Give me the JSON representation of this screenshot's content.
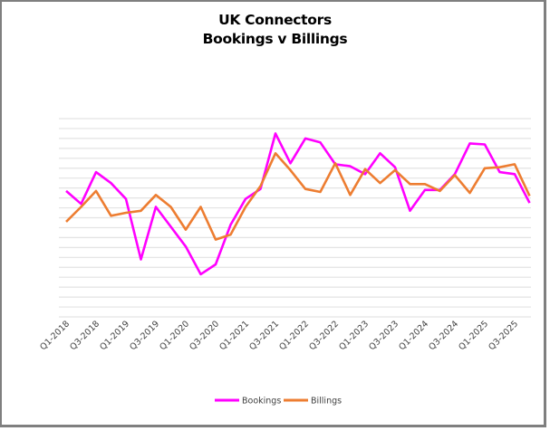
{
  "chart_data": {
    "type": "line",
    "title": "UK Connectors",
    "subtitle": "Bookings v Billings",
    "xlabel": "",
    "ylabel": "",
    "y_axis_labels_shown": false,
    "grid": true,
    "gridline_count": 21,
    "ylim": [
      0,
      20
    ],
    "legend_position": "bottom",
    "categories": [
      "Q1-2018",
      "Q2-2018",
      "Q3-2018",
      "Q4-2018",
      "Q1-2019",
      "Q2-2019",
      "Q3-2019",
      "Q4-2019",
      "Q1-2020",
      "Q2-2020",
      "Q3-2020",
      "Q4-2020",
      "Q1-2021",
      "Q2-2021",
      "Q3-2021",
      "Q4-2021",
      "Q1-2022",
      "Q2-2022",
      "Q3-2022",
      "Q4-2022",
      "Q1-2023",
      "Q2-2023",
      "Q3-2023",
      "Q4-2023",
      "Q1-2024",
      "Q2-2024",
      "Q3-2024",
      "Q4-2024",
      "Q1-2025",
      "Q2-2025",
      "Q3-2025",
      "Q4-2025"
    ],
    "tick_labels": [
      "Q1-2018",
      "Q3-2018",
      "Q1-2019",
      "Q3-2019",
      "Q1-2020",
      "Q3-2020",
      "Q1-2021",
      "Q3-2021",
      "Q1-2022",
      "Q3-2022",
      "Q1-2023",
      "Q3-2023",
      "Q1-2024",
      "Q3-2024",
      "Q1-2025",
      "Q3-2025"
    ],
    "series": [
      {
        "name": "Bookings",
        "color": "#ff00ff",
        "values": [
          12.7,
          11.4,
          14.6,
          13.5,
          11.9,
          5.8,
          11.1,
          9.1,
          7.1,
          4.3,
          5.3,
          9.3,
          11.9,
          12.9,
          18.5,
          15.5,
          18.0,
          17.6,
          15.4,
          15.2,
          14.4,
          16.5,
          15.1,
          10.7,
          12.8,
          12.8,
          14.4,
          17.5,
          17.4,
          14.6,
          14.4,
          11.5
        ]
      },
      {
        "name": "Billings",
        "color": "#ed7d31",
        "values": [
          9.6,
          11.1,
          12.7,
          10.2,
          10.5,
          10.7,
          12.3,
          11.1,
          8.8,
          11.1,
          7.8,
          8.3,
          11.1,
          13.2,
          16.5,
          14.8,
          12.9,
          12.6,
          15.5,
          12.3,
          14.9,
          13.5,
          14.8,
          13.4,
          13.4,
          12.7,
          14.3,
          12.5,
          15.0,
          15.1,
          15.4,
          12.2
        ]
      }
    ]
  }
}
